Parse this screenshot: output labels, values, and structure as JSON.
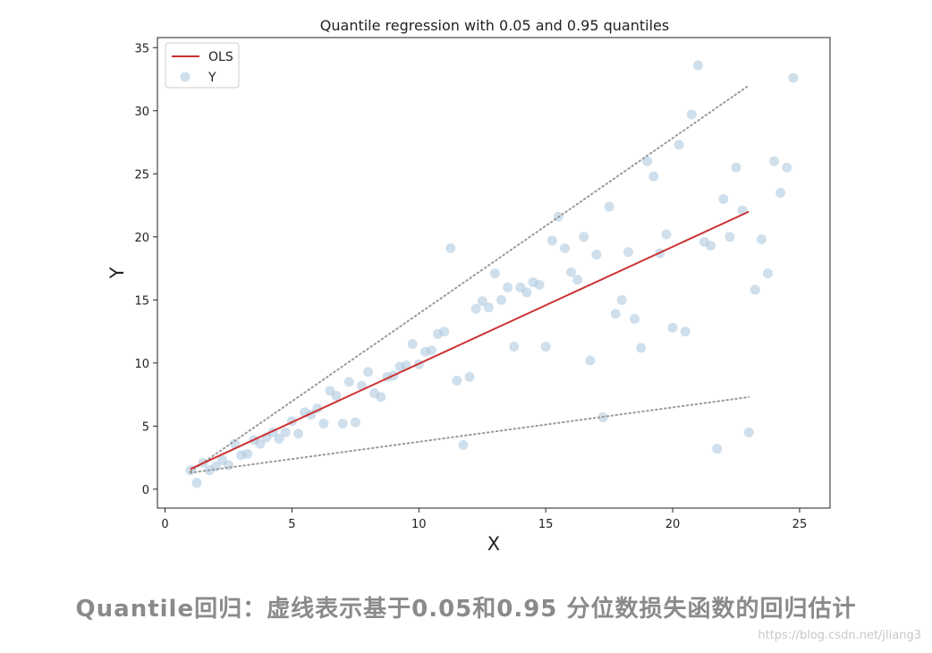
{
  "chart_data": {
    "type": "scatter",
    "title": "Quantile regression with 0.05 and 0.95 quantiles",
    "xlabel": "X",
    "ylabel": "Y",
    "xlim": [
      -0.3,
      26.2
    ],
    "ylim": [
      -1.5,
      35.8
    ],
    "xticks": [
      0,
      5,
      10,
      15,
      20,
      25
    ],
    "yticks": [
      0,
      5,
      10,
      15,
      20,
      25,
      30,
      35
    ],
    "grid": false,
    "legend_position": "top-left",
    "colors": {
      "ols": "#cc3333",
      "points": "#a8c4dc",
      "quantile": "#999999"
    },
    "lines": [
      {
        "name": "OLS",
        "x": [
          1,
          23
        ],
        "y": [
          1.6,
          22.0
        ]
      },
      {
        "x": [
          1,
          23
        ],
        "y": [
          1.4,
          32.0
        ]
      },
      {
        "x": [
          1,
          23
        ],
        "y": [
          1.3,
          7.3
        ]
      }
    ],
    "series": [
      {
        "name": "Y",
        "x": [
          1.0,
          1.25,
          1.5,
          1.75,
          2.0,
          2.25,
          2.5,
          2.75,
          3.0,
          3.25,
          3.5,
          3.75,
          4.0,
          4.25,
          4.5,
          4.75,
          5.0,
          5.25,
          5.5,
          5.75,
          6.0,
          6.25,
          6.5,
          6.75,
          7.0,
          7.25,
          7.5,
          7.75,
          8.0,
          8.25,
          8.5,
          8.75,
          9.0,
          9.25,
          9.5,
          9.75,
          10.0,
          10.25,
          10.5,
          10.75,
          11.0,
          11.25,
          11.5,
          11.75,
          12.0,
          12.25,
          12.5,
          12.75,
          13.0,
          13.25,
          13.5,
          13.75,
          14.0,
          14.25,
          14.5,
          14.75,
          15.0,
          15.25,
          15.5,
          15.75,
          16.0,
          16.25,
          16.5,
          16.75,
          17.0,
          17.25,
          17.5,
          17.75,
          18.0,
          18.25,
          18.5,
          18.75,
          19.0,
          19.25,
          19.5,
          19.75,
          20.0,
          20.25,
          20.5,
          20.75,
          21.0,
          21.25,
          21.5,
          21.75,
          22.0,
          22.25,
          22.5,
          22.75,
          23.0,
          23.25,
          23.5,
          23.75,
          24.0,
          24.25,
          24.5,
          24.75
        ],
        "y": [
          1.5,
          0.5,
          2.1,
          1.5,
          1.8,
          2.3,
          1.9,
          3.6,
          2.7,
          2.8,
          3.9,
          3.6,
          4.1,
          4.5,
          4.0,
          4.5,
          5.4,
          4.4,
          6.1,
          5.9,
          6.4,
          5.2,
          7.8,
          7.4,
          5.2,
          8.5,
          5.3,
          8.2,
          9.3,
          7.6,
          7.3,
          8.9,
          9.0,
          9.7,
          9.8,
          11.5,
          9.9,
          10.9,
          11.0,
          12.3,
          12.5,
          19.1,
          8.6,
          3.5,
          8.9,
          14.3,
          14.9,
          14.4,
          17.1,
          15.0,
          16.0,
          11.3,
          16.0,
          15.6,
          16.4,
          16.2,
          11.3,
          19.7,
          21.6,
          19.1,
          17.2,
          16.6,
          20.0,
          10.2,
          18.6,
          5.7,
          22.4,
          13.9,
          15.0,
          18.8,
          13.5,
          11.2,
          26.0,
          24.8,
          18.7,
          20.2,
          12.8,
          27.3,
          12.5,
          29.7,
          33.6,
          19.6,
          19.3,
          3.2,
          23.0,
          20.0,
          25.5,
          22.1,
          4.5,
          15.8,
          19.8,
          17.1,
          26.0,
          23.5,
          25.5,
          32.6
        ]
      }
    ]
  },
  "caption": "Quantile回归：虚线表示基于0.05和0.95 分位数损失函数的回归估计",
  "watermark": "https://blog.csdn.net/jliang3"
}
